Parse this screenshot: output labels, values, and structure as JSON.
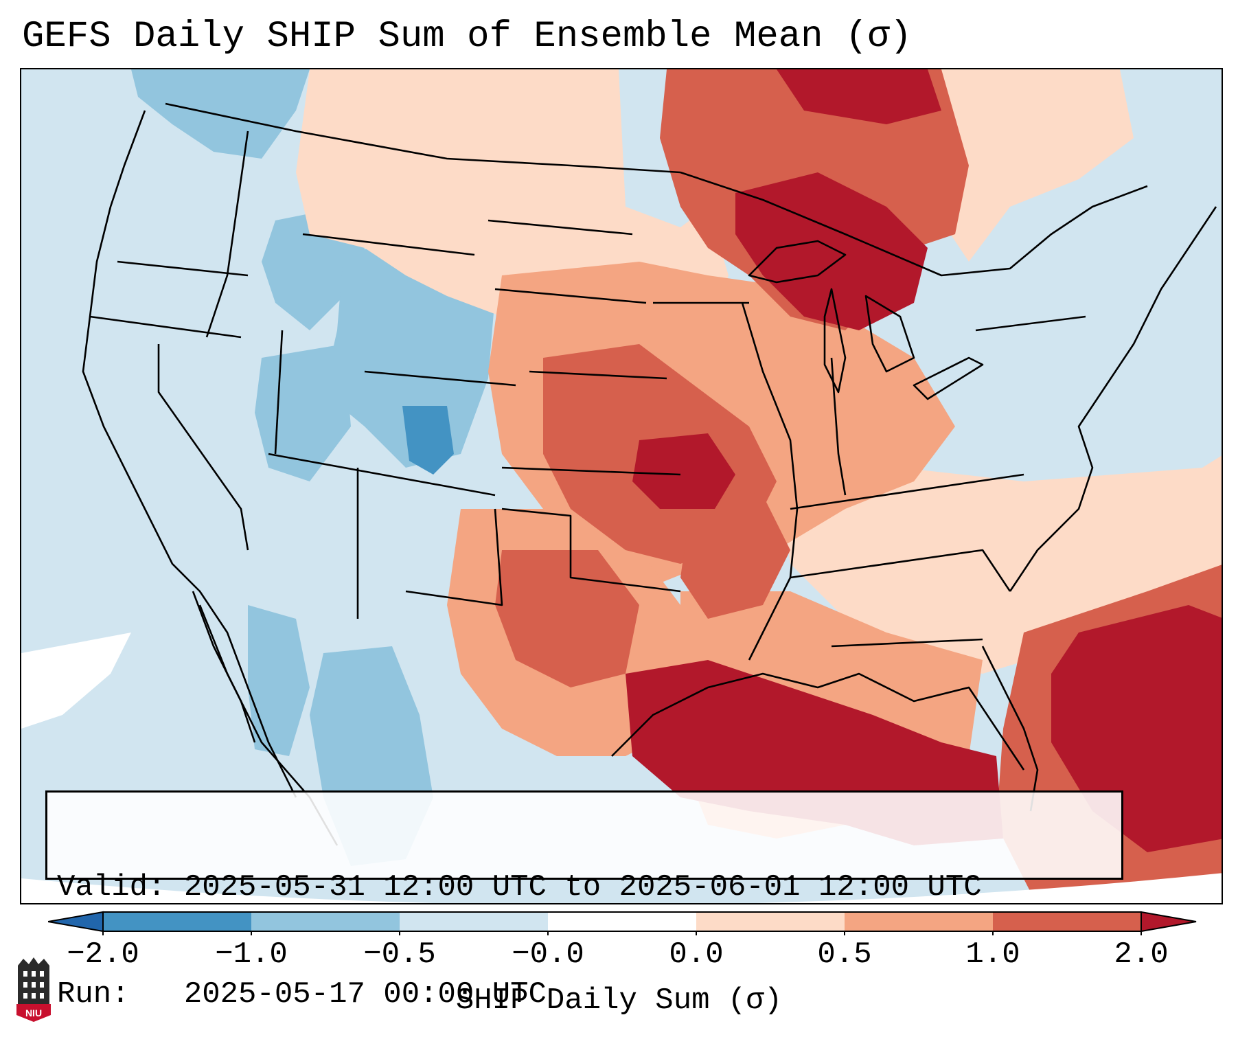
{
  "title": "GEFS Daily SHIP Sum of Ensemble Mean (σ)",
  "info": {
    "valid_label": "Valid:",
    "valid_value": "2025-05-31 12:00 UTC to 2025-06-01 12:00 UTC",
    "run_label": "Run:",
    "run_value": "2025-05-17 00:00 UTC"
  },
  "colorbar": {
    "label": "SHIP Daily Sum (σ)",
    "ticks": [
      "−2.0",
      "−1.0",
      "−0.5",
      "−0.0",
      "0.0",
      "0.5",
      "1.0",
      "2.0"
    ],
    "colors": [
      "#2166ac",
      "#4393c3",
      "#92c5de",
      "#d1e5f0",
      "#ffffff",
      "#fddbc7",
      "#f4a582",
      "#d6604d",
      "#b2182b"
    ]
  },
  "logo": {
    "text": "NIU",
    "color": "#c8102e"
  }
}
